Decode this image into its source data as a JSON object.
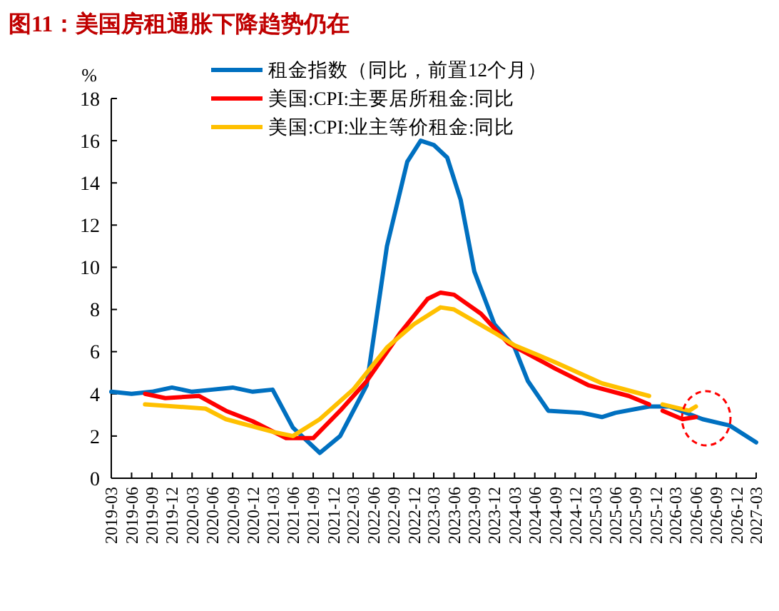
{
  "chart_data": {
    "type": "line",
    "title": "图11：美国房租通胀下降趋势仍在",
    "ylabel": "%",
    "xlim": [
      "2019-03",
      "2027-03"
    ],
    "xticks": [
      "2019-03",
      "2019-06",
      "2019-09",
      "2019-12",
      "2020-03",
      "2020-06",
      "2020-09",
      "2020-12",
      "2021-03",
      "2021-06",
      "2021-09",
      "2021-12",
      "2022-03",
      "2022-06",
      "2022-09",
      "2022-12",
      "2023-03",
      "2023-06",
      "2023-09",
      "2023-12",
      "2024-03",
      "2024-06",
      "2024-09",
      "2024-12",
      "2025-03",
      "2025-06",
      "2025-09",
      "2025-12",
      "2026-03",
      "2026-06",
      "2026-09",
      "2026-12",
      "2027-03"
    ],
    "ylim": [
      0,
      18
    ],
    "yticks": [
      0,
      2,
      4,
      6,
      8,
      10,
      12,
      14,
      16,
      18
    ],
    "grid": false,
    "legend": "top",
    "marker": "none",
    "line_style": "solid",
    "series": [
      {
        "name": "租金指数（同比，前置12个月）",
        "color": "#0070c0",
        "x": [
          "2019-03",
          "2019-06",
          "2019-09",
          "2019-12",
          "2020-03",
          "2020-06",
          "2020-09",
          "2020-12",
          "2021-03",
          "2021-06",
          "2021-10",
          "2022-01",
          "2022-05",
          "2022-08",
          "2022-11",
          "2023-01",
          "2023-03",
          "2023-05",
          "2023-07",
          "2023-09",
          "2023-12",
          "2024-03",
          "2024-05",
          "2024-08",
          "2025-01",
          "2025-04",
          "2025-06",
          "2025-11",
          "2026-02",
          "2026-07",
          "2026-11",
          "2027-03"
        ],
        "values": [
          4.1,
          4.0,
          4.1,
          4.3,
          4.1,
          4.2,
          4.3,
          4.1,
          4.2,
          2.4,
          1.2,
          2.0,
          4.4,
          11.0,
          15.0,
          16.0,
          15.8,
          15.2,
          13.2,
          9.8,
          7.3,
          6.2,
          4.6,
          3.2,
          3.1,
          2.9,
          3.1,
          3.4,
          3.4,
          2.8,
          2.5,
          1.7
        ]
      },
      {
        "name": "美国:CPI:主要居所租金:同比",
        "color": "#ff0000",
        "x": [
          "2019-08",
          "2019-11",
          "2020-04",
          "2020-08",
          "2020-12",
          "2021-05",
          "2021-09",
          "2022-01",
          "2022-05",
          "2022-10",
          "2023-02",
          "2023-04",
          "2023-06",
          "2023-10",
          "2024-02",
          "2024-09",
          "2025-02",
          "2025-08",
          "2025-11",
          "2025-12",
          "2026-01",
          "2026-04",
          "2026-06"
        ],
        "values": [
          4.0,
          3.8,
          3.9,
          3.2,
          2.7,
          1.9,
          1.9,
          3.2,
          4.6,
          6.9,
          8.5,
          8.8,
          8.7,
          7.8,
          6.4,
          5.2,
          4.4,
          3.9,
          3.5,
          null,
          3.2,
          2.8,
          2.9
        ]
      },
      {
        "name": "美国:CPI:业主等价租金:同比",
        "color": "#ffc000",
        "x": [
          "2019-08",
          "2020-05",
          "2020-08",
          "2021-03",
          "2021-06",
          "2021-10",
          "2022-03",
          "2022-08",
          "2022-12",
          "2023-04",
          "2023-06",
          "2023-12",
          "2024-03",
          "2024-09",
          "2025-04",
          "2025-11",
          "2025-12",
          "2026-01",
          "2026-05",
          "2026-06"
        ],
        "values": [
          3.5,
          3.3,
          2.8,
          2.2,
          2.0,
          2.8,
          4.2,
          6.2,
          7.3,
          8.1,
          8.0,
          6.9,
          6.3,
          5.5,
          4.5,
          3.9,
          null,
          3.5,
          3.2,
          3.4
        ]
      }
    ]
  }
}
